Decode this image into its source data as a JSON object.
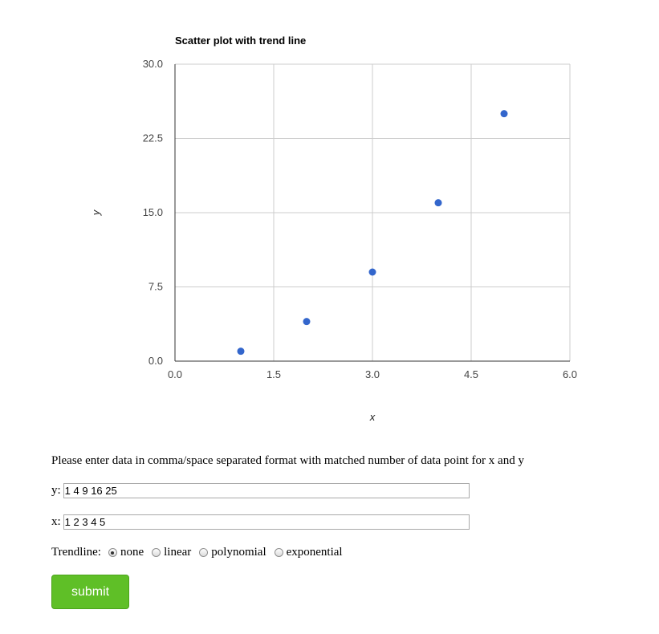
{
  "chart_data": {
    "type": "scatter",
    "title": "Scatter plot with trend line",
    "xlabel": "x",
    "ylabel": "y",
    "xlim": [
      0,
      6
    ],
    "ylim": [
      0,
      30
    ],
    "x_ticks": [
      "0.0",
      "1.5",
      "3.0",
      "4.5",
      "6.0"
    ],
    "y_ticks": [
      "0.0",
      "7.5",
      "15.0",
      "22.5",
      "30.0"
    ],
    "grid": true,
    "point_color": "#3366cc",
    "points": [
      {
        "x": 1,
        "y": 1
      },
      {
        "x": 2,
        "y": 4
      },
      {
        "x": 3,
        "y": 9
      },
      {
        "x": 4,
        "y": 16
      },
      {
        "x": 5,
        "y": 25
      }
    ]
  },
  "form": {
    "instructions": "Please enter data in comma/space separated format with matched number of data point for x and y",
    "y_label": "y:",
    "y_value": "1 4 9 16 25",
    "x_label": "x:",
    "x_value": "1 2 3 4 5",
    "trendline_label": "Trendline:",
    "trendline_options": [
      {
        "label": "none",
        "checked": true
      },
      {
        "label": "linear",
        "checked": false
      },
      {
        "label": "polynomial",
        "checked": false
      },
      {
        "label": "exponential",
        "checked": false
      }
    ],
    "submit_label": "submit",
    "submit_color": "#5fbf27"
  }
}
